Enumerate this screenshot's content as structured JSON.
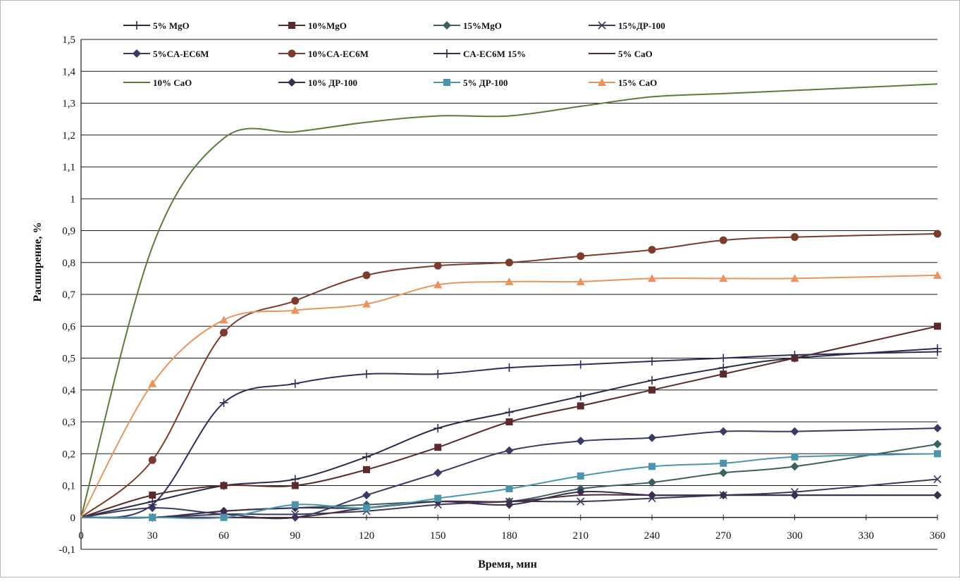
{
  "chart_data": {
    "type": "line",
    "title": "",
    "xlabel": "Время, мин",
    "ylabel": "Расширение, %",
    "xlim": [
      0,
      360
    ],
    "ylim": [
      -0.1,
      1.5
    ],
    "xticks": [
      0,
      30,
      60,
      90,
      120,
      150,
      180,
      210,
      240,
      270,
      300,
      330,
      360
    ],
    "xtick_labels": [
      "0",
      "30",
      "60",
      "90",
      "120",
      "150",
      "180",
      "210",
      "240",
      "270",
      "300",
      "330",
      "360"
    ],
    "yticks": [
      -0.1,
      0,
      0.1,
      0.2,
      0.3,
      0.4,
      0.5,
      0.6,
      0.7,
      0.8,
      0.9,
      1,
      1.1,
      1.2,
      1.3,
      1.4,
      1.5
    ],
    "ytick_labels": [
      "-0,1",
      "0",
      "0,1",
      "0,2",
      "0,3",
      "0,4",
      "0,5",
      "0,6",
      "0,7",
      "0,8",
      "0,9",
      "1",
      "1,1",
      "1,2",
      "1,3",
      "1,4",
      "1,5"
    ],
    "grid": "horizontal",
    "legend_position": "top",
    "x": [
      0,
      30,
      60,
      90,
      120,
      150,
      180,
      210,
      240,
      270,
      300,
      360
    ],
    "series": [
      {
        "name": "5% MgO",
        "color": "#2b2b4a",
        "marker": "plus",
        "values": [
          0,
          0.05,
          0.1,
          0.12,
          0.19,
          0.28,
          0.33,
          0.38,
          0.43,
          0.47,
          0.5,
          0.53
        ]
      },
      {
        "name": "10%MgO",
        "color": "#5c2a2a",
        "marker": "square",
        "values": [
          0,
          0.07,
          0.1,
          0.1,
          0.15,
          0.22,
          0.3,
          0.35,
          0.4,
          0.45,
          0.5,
          0.6
        ]
      },
      {
        "name": "15%MgO",
        "color": "#3a6060",
        "marker": "diamond",
        "values": [
          0,
          0,
          0.02,
          0.03,
          0.04,
          0.05,
          0.05,
          0.09,
          0.11,
          0.14,
          0.16,
          0.23
        ]
      },
      {
        "name": "15%ДР-100",
        "color": "#3a3a5a",
        "marker": "x",
        "values": [
          0,
          0,
          0.01,
          0.01,
          0.02,
          0.04,
          0.05,
          0.05,
          0.06,
          0.07,
          0.08,
          0.12
        ]
      },
      {
        "name": "5%CA-EC6M",
        "color": "#3a3a66",
        "marker": "diamond",
        "values": [
          0,
          0.03,
          0.01,
          0,
          0.07,
          0.14,
          0.21,
          0.24,
          0.25,
          0.27,
          0.27,
          0.28
        ]
      },
      {
        "name": "10%CA-EC6M",
        "color": "#7d3b2b",
        "marker": "circle",
        "values": [
          0,
          0.18,
          0.58,
          0.68,
          0.76,
          0.79,
          0.8,
          0.82,
          0.84,
          0.87,
          0.88,
          0.89
        ]
      },
      {
        "name": "CA-EC6M 15%",
        "color": "#2f2f5a",
        "marker": "plus",
        "values": [
          0,
          0.04,
          0.36,
          0.42,
          0.45,
          0.45,
          0.47,
          0.48,
          0.49,
          0.5,
          0.51,
          0.52
        ]
      },
      {
        "name": "5% CaO",
        "color": "#4a2d3c",
        "marker": "none",
        "values": [
          0,
          0,
          0,
          0,
          0.03,
          0.05,
          0.05,
          0.07,
          0.07,
          0.07,
          0.07,
          0.07
        ]
      },
      {
        "name": "10% CaO",
        "color": "#5e7a3a",
        "marker": "none",
        "values": [
          0,
          0.85,
          1.19,
          1.21,
          1.24,
          1.26,
          1.26,
          1.29,
          1.32,
          1.33,
          1.34,
          1.36
        ]
      },
      {
        "name": "10% ДР-100",
        "color": "#3a2f50",
        "marker": "diamond",
        "values": [
          0,
          0,
          0.02,
          0.03,
          0.03,
          0.05,
          0.04,
          0.08,
          0.07,
          0.07,
          0.07,
          0.07
        ]
      },
      {
        "name": "5% ДР-100",
        "color": "#4a95ad",
        "marker": "square",
        "values": [
          0,
          0,
          0,
          0.04,
          0.03,
          0.06,
          0.09,
          0.13,
          0.16,
          0.17,
          0.19,
          0.2
        ]
      },
      {
        "name": "15% CaO",
        "color": "#e8945a",
        "marker": "triangle",
        "values": [
          0,
          0.42,
          0.62,
          0.65,
          0.67,
          0.73,
          0.74,
          0.74,
          0.75,
          0.75,
          0.75,
          0.76
        ]
      }
    ]
  }
}
